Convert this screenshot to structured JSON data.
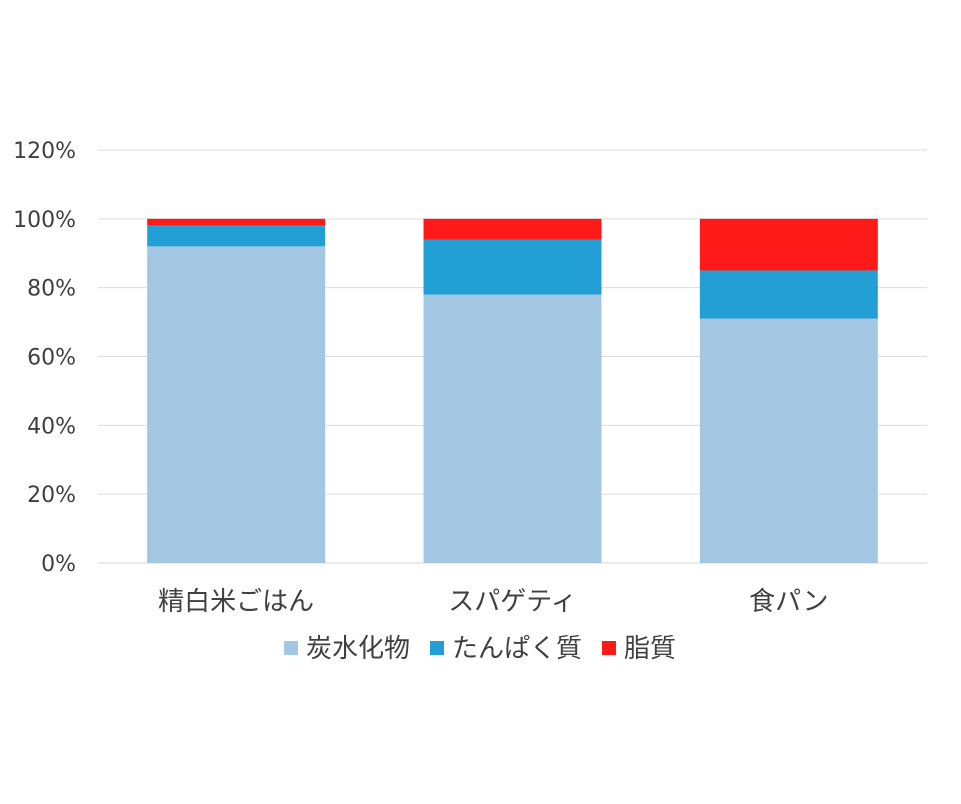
{
  "chart_data": {
    "type": "bar",
    "stacked": true,
    "categories": [
      "精白米ごはん",
      "スパゲティ",
      "食パン"
    ],
    "series": [
      {
        "name": "炭水化物",
        "color": "#A3C6E2",
        "values": [
          92,
          78,
          71
        ]
      },
      {
        "name": "たんぱく質",
        "color": "#22A0D6",
        "values": [
          6,
          16,
          14
        ]
      },
      {
        "name": "脂質",
        "color": "#FF1A1A",
        "values": [
          2,
          6,
          15
        ]
      }
    ],
    "ylim": [
      0,
      120
    ],
    "yticks": [
      0,
      20,
      40,
      60,
      80,
      100,
      120
    ],
    "ytick_labels": [
      "0%",
      "20%",
      "40%",
      "60%",
      "80%",
      "100%",
      "120%"
    ],
    "title": "",
    "xlabel": "",
    "ylabel": "",
    "grid": true,
    "legend_position": "bottom"
  }
}
